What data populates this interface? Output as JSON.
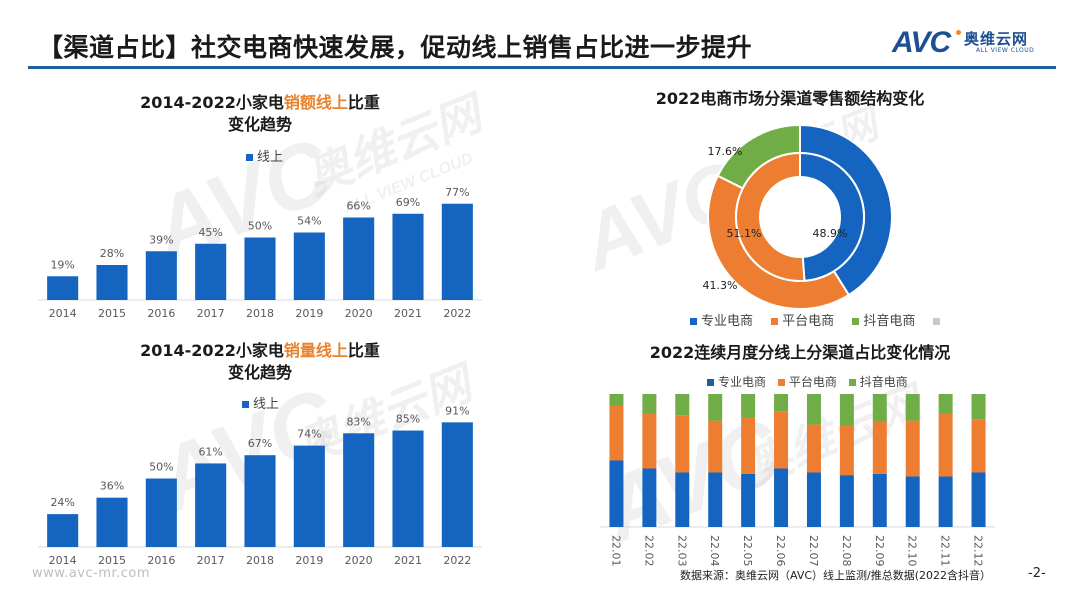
{
  "header": {
    "title": "【渠道占比】社交电商快速发展，促动线上销售占比进一步提升",
    "logo": {
      "brand": "AVC",
      "name_cn": "奥维云网",
      "name_en": "ALL VIEW CLOUD"
    }
  },
  "watermark": {
    "brand": "AVC",
    "name_cn": "奥维云网",
    "name_en": "ALL VIEW CLOUD"
  },
  "footer": {
    "url": "www.avc-mr.com",
    "source": "数据来源：奥维云网（AVC）线上监测/推总数据(2022含抖音）",
    "page": "-2-"
  },
  "colors": {
    "blue": "#1565c0",
    "orange": "#ed7d31",
    "green": "#70ad47",
    "highlight": "#e8832f",
    "rule": "#1f5f9a"
  },
  "chart_data": [
    {
      "id": "sales-value-online",
      "type": "bar",
      "title_parts": [
        "2014-2022小家电",
        "销额线上",
        "比重"
      ],
      "title_line2": "变化趋势",
      "legend": [
        "线上"
      ],
      "categories": [
        "2014",
        "2015",
        "2016",
        "2017",
        "2018",
        "2019",
        "2020",
        "2021",
        "2022"
      ],
      "values": [
        19,
        28,
        39,
        45,
        50,
        54,
        66,
        69,
        77
      ],
      "labels": [
        "19%",
        "28%",
        "39%",
        "45%",
        "50%",
        "54%",
        "66%",
        "69%",
        "77%"
      ],
      "ylim": [
        0,
        100
      ],
      "grid": false,
      "legend_position": "top"
    },
    {
      "id": "sales-volume-online",
      "type": "bar",
      "title_parts": [
        "2014-2022小家电",
        "销量线上",
        "比重"
      ],
      "title_line2": "变化趋势",
      "legend": [
        "线上"
      ],
      "categories": [
        "2014",
        "2015",
        "2016",
        "2017",
        "2018",
        "2019",
        "2020",
        "2021",
        "2022"
      ],
      "values": [
        24,
        36,
        50,
        61,
        67,
        74,
        83,
        85,
        91
      ],
      "labels": [
        "24%",
        "36%",
        "50%",
        "61%",
        "67%",
        "74%",
        "83%",
        "85%",
        "91%"
      ],
      "ylim": [
        0,
        100
      ],
      "grid": false,
      "legend_position": "top"
    },
    {
      "id": "channel-structure-donut",
      "type": "pie",
      "title": "2022电商市场分渠道零售额结构变化",
      "legend": [
        "专业电商",
        "平台电商",
        "抖音电商",
        ""
      ],
      "legend_position": "bottom",
      "rings": [
        {
          "name": "outer",
          "slices": [
            {
              "name": "专业电商",
              "value": 41.1,
              "label": "41.1%"
            },
            {
              "name": "平台电商",
              "value": 41.3,
              "label": "41.3%"
            },
            {
              "name": "抖音电商",
              "value": 17.6,
              "label": "17.6%"
            }
          ]
        },
        {
          "name": "inner",
          "slices": [
            {
              "name": "专业电商",
              "value": 48.9,
              "label": "48.9%"
            },
            {
              "name": "平台电商",
              "value": 51.1,
              "label": "51.1%"
            }
          ]
        }
      ]
    },
    {
      "id": "monthly-channel-share",
      "type": "bar",
      "stacked": true,
      "title": "2022连续月度分线上分渠道占比变化情况",
      "legend": [
        "专业电商",
        "平台电商",
        "抖音电商"
      ],
      "legend_position": "top",
      "categories": [
        "22.01",
        "22.02",
        "22.03",
        "22.04",
        "22.05",
        "22.06",
        "22.07",
        "22.08",
        "22.09",
        "22.10",
        "22.11",
        "22.12"
      ],
      "series": [
        {
          "name": "专业电商",
          "values": [
            50,
            44,
            41,
            41,
            40,
            44,
            41,
            39,
            40,
            38,
            38,
            41
          ]
        },
        {
          "name": "平台电商",
          "values": [
            41,
            41,
            43,
            39,
            42,
            43,
            36,
            37,
            39,
            42,
            47,
            40
          ]
        },
        {
          "name": "抖音电商",
          "values": [
            9,
            15,
            16,
            20,
            18,
            13,
            23,
            24,
            21,
            20,
            15,
            19
          ]
        }
      ],
      "ylim": [
        0,
        100
      ],
      "grid": false
    }
  ]
}
